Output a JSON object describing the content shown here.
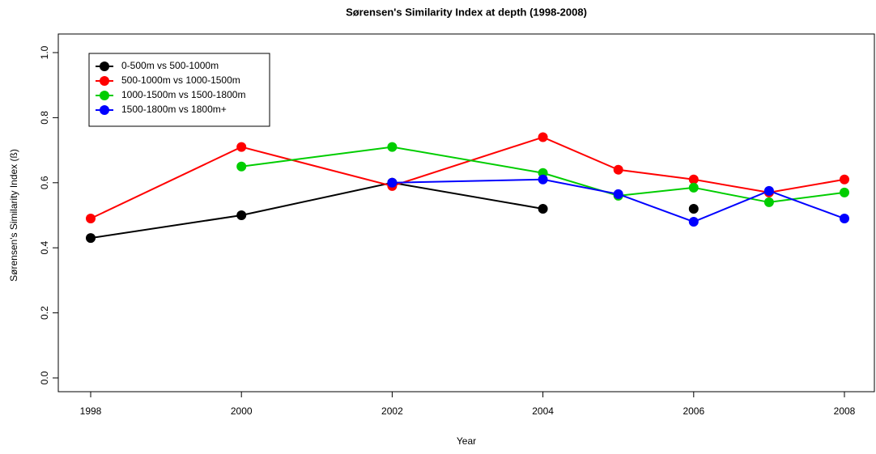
{
  "chart_data": {
    "type": "line",
    "title": "Sørensen's Similarity Index at depth (1998-2008)",
    "x_label": "Year",
    "y_label": "Sørensen's Similarity Index (ß)",
    "x": [
      1998,
      2000,
      2002,
      2004,
      2005,
      2006,
      2007,
      2008
    ],
    "series": [
      {
        "name": "0-500m vs 500-1000m",
        "color": "#000000",
        "values": [
          0.43,
          0.5,
          0.6,
          0.52,
          null,
          0.52,
          null,
          null
        ]
      },
      {
        "name": "500-1000m vs 1000-1500m",
        "color": "#ff0000",
        "values": [
          0.49,
          0.71,
          0.59,
          0.74,
          0.64,
          0.61,
          0.57,
          0.61
        ]
      },
      {
        "name": "1000-1500m vs 1500-1800m",
        "color": "#00cd00",
        "values": [
          null,
          0.65,
          0.71,
          0.63,
          0.56,
          0.585,
          0.54,
          0.57
        ]
      },
      {
        "name": "1500-1800m vs 1800m+",
        "color": "#0000ff",
        "values": [
          null,
          null,
          0.6,
          0.61,
          0.565,
          0.48,
          0.575,
          0.49
        ]
      }
    ],
    "xlim": [
      1998,
      2008
    ],
    "xticks": [
      1998,
      2000,
      2002,
      2004,
      2006,
      2008
    ],
    "ylim": [
      0,
      1
    ],
    "yticks": [
      {
        "value": 0,
        "label": "0.0"
      },
      0.2,
      0.4,
      0.6,
      0.8,
      {
        "value": 1,
        "label": "1.0"
      }
    ],
    "legend": "top-left"
  }
}
